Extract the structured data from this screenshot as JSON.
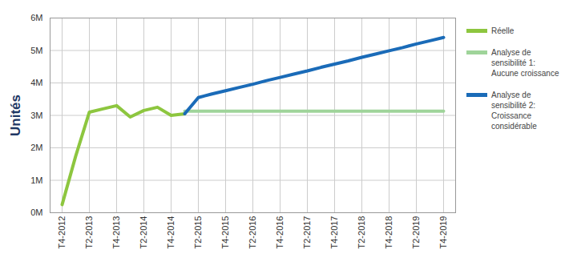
{
  "chart_data": {
    "type": "line",
    "y_label": "Unités",
    "categories": [
      "T4-2012",
      null,
      "T2-2013",
      null,
      "T4-2013",
      null,
      "T2-2014",
      null,
      "T4-2014",
      null,
      "T2-2015",
      null,
      "T4-2015",
      null,
      "T2-2016",
      null,
      "T4-2016",
      null,
      "T2-2017",
      null,
      "T4-2017",
      null,
      "T2-2018",
      null,
      "T4-2018",
      null,
      "T2-2019",
      null,
      "T4-2019"
    ],
    "series": [
      {
        "name": "Réelle",
        "color": "#8dc63f",
        "values": [
          250000,
          1750000,
          3100000,
          3200000,
          3300000,
          2950000,
          3150000,
          3250000,
          3000000,
          3050000,
          null,
          null,
          null,
          null,
          null,
          null,
          null,
          null,
          null,
          null,
          null,
          null,
          null,
          null,
          null,
          null,
          null,
          null,
          null
        ]
      },
      {
        "name": "Analyse de sensibilité 1: Aucune croissance",
        "color": "#9fd49a",
        "values": [
          null,
          null,
          null,
          null,
          null,
          null,
          null,
          null,
          null,
          3130000,
          3130000,
          3130000,
          3130000,
          3130000,
          3130000,
          3130000,
          3130000,
          3130000,
          3130000,
          3130000,
          3130000,
          3130000,
          3130000,
          3130000,
          3130000,
          3130000,
          3130000,
          3130000,
          3130000
        ]
      },
      {
        "name": "Analyse de sensibilité 2: Croissance considérable",
        "color": "#1a6bb8",
        "values": [
          null,
          null,
          null,
          null,
          null,
          null,
          null,
          null,
          null,
          3050000,
          3550000,
          3660000,
          3760000,
          3860000,
          3960000,
          4070000,
          4170000,
          4270000,
          4370000,
          4480000,
          4580000,
          4680000,
          4790000,
          4890000,
          4990000,
          5090000,
          5200000,
          5300000,
          5400000
        ]
      }
    ],
    "ylim": [
      0,
      6000000
    ],
    "yticks": [
      {
        "value": 0,
        "label": "0M"
      },
      {
        "value": 1000000,
        "label": "1M"
      },
      {
        "value": 2000000,
        "label": "2M"
      },
      {
        "value": 3000000,
        "label": "3M"
      },
      {
        "value": 4000000,
        "label": "4M"
      },
      {
        "value": 5000000,
        "label": "5M"
      },
      {
        "value": 6000000,
        "label": "6M"
      }
    ],
    "grid": true,
    "legend": "right"
  }
}
